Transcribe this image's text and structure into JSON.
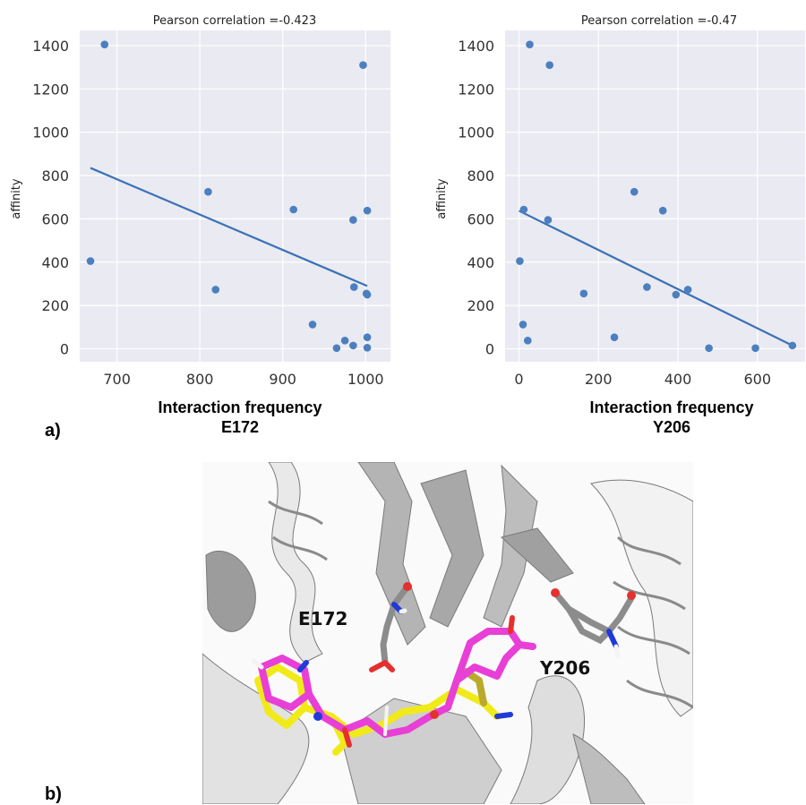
{
  "figure": {
    "panel_a_label": "a)",
    "panel_b_label": "b)"
  },
  "chart_data": [
    {
      "type": "scatter",
      "title": "Pearson correlation =-0.423",
      "xlabel": "Interaction frequency",
      "xlabel_sub": "E172",
      "ylabel": "affinity",
      "xlim": [
        655,
        1030
      ],
      "ylim": [
        -60,
        1470
      ],
      "xticks": [
        700,
        800,
        900,
        1000
      ],
      "yticks": [
        0,
        200,
        400,
        600,
        800,
        1000,
        1200,
        1400
      ],
      "grid": true,
      "points": [
        {
          "x": 685,
          "y": 1405
        },
        {
          "x": 997,
          "y": 1310
        },
        {
          "x": 810,
          "y": 725
        },
        {
          "x": 913,
          "y": 643
        },
        {
          "x": 985,
          "y": 595
        },
        {
          "x": 1002,
          "y": 638
        },
        {
          "x": 668,
          "y": 405
        },
        {
          "x": 819,
          "y": 273
        },
        {
          "x": 986,
          "y": 285
        },
        {
          "x": 1001,
          "y": 255
        },
        {
          "x": 1002,
          "y": 250
        },
        {
          "x": 936,
          "y": 112
        },
        {
          "x": 975,
          "y": 38
        },
        {
          "x": 985,
          "y": 15
        },
        {
          "x": 965,
          "y": 3
        },
        {
          "x": 1002,
          "y": 53
        },
        {
          "x": 1002,
          "y": 5
        }
      ],
      "fit_line": {
        "x": [
          668,
          1002
        ],
        "y": [
          835,
          290
        ]
      },
      "color": "#4c7fbf",
      "line_color": "#3a72b5",
      "background": "#eaeaf2"
    },
    {
      "type": "scatter",
      "title": "Pearson correlation =-0.47",
      "xlabel": "Interaction frequency",
      "xlabel_sub": "Y206",
      "ylabel": "affinity",
      "xlim": [
        -35,
        720
      ],
      "ylim": [
        -60,
        1470
      ],
      "xticks": [
        0,
        200,
        400,
        600
      ],
      "yticks": [
        0,
        200,
        400,
        600,
        800,
        1000,
        1200,
        1400
      ],
      "grid": true,
      "points": [
        {
          "x": 27,
          "y": 1405
        },
        {
          "x": 77,
          "y": 1310
        },
        {
          "x": 290,
          "y": 725
        },
        {
          "x": 12,
          "y": 643
        },
        {
          "x": 73,
          "y": 595
        },
        {
          "x": 362,
          "y": 638
        },
        {
          "x": 2,
          "y": 405
        },
        {
          "x": 163,
          "y": 255
        },
        {
          "x": 322,
          "y": 285
        },
        {
          "x": 395,
          "y": 250
        },
        {
          "x": 425,
          "y": 273
        },
        {
          "x": 10,
          "y": 112
        },
        {
          "x": 22,
          "y": 38
        },
        {
          "x": 240,
          "y": 53
        },
        {
          "x": 478,
          "y": 3
        },
        {
          "x": 595,
          "y": 3
        },
        {
          "x": 688,
          "y": 15
        }
      ],
      "fit_line": {
        "x": [
          0,
          688
        ],
        "y": [
          637,
          15
        ]
      },
      "color": "#4c7fbf",
      "line_color": "#3a72b5",
      "background": "#eaeaf2"
    }
  ],
  "structure": {
    "residue_1": "E172",
    "residue_2": "Y206",
    "colors": {
      "ribbon": "#b3b3b3",
      "ribbon_light": "#f0f0f0",
      "ligand_1": "#e83fd6",
      "ligand_2": "#f1ea19",
      "carbon": "#8c8c8c",
      "oxygen": "#e53030",
      "nitrogen": "#1f3ad8",
      "hydrogen": "#f4f4f4"
    }
  }
}
